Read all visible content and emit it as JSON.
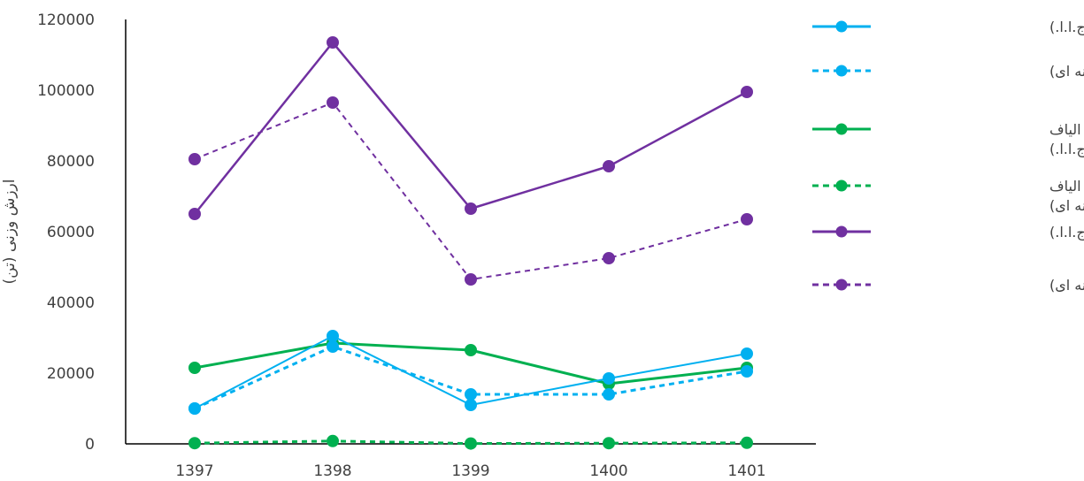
{
  "chart_data": {
    "type": "line",
    "title": "",
    "xlabel": "",
    "ylabel": "ارزش وزنی (تن)",
    "categories": [
      "1397",
      "1398",
      "1399",
      "1400",
      "1401"
    ],
    "ylim": [
      0,
      120000
    ],
    "yticks": [
      "0",
      "20000",
      "40000",
      "60000",
      "80000",
      "100000",
      "120000"
    ],
    "grid": false,
    "legend_position": "right",
    "series": [
      {
        "name": "نخ پنبه (گمرک ج.ا.ا.)",
        "legend_lines": [
          "نخ پنبه (گمرک ج.ا.ا.)"
        ],
        "color": "#00B0F0",
        "dashed": false,
        "width": 2,
        "values": [
          10000,
          30500,
          11000,
          18500,
          25500
        ]
      },
      {
        "name": "نخ پنبه (آینه ای)",
        "legend_lines": [
          "نخ پنبه (آینه ای)"
        ],
        "color": "#00B0F0",
        "dashed": true,
        "width": 3,
        "values": [
          10000,
          27500,
          14000,
          14000,
          20500
        ]
      },
      {
        "name": "نخ تهیه شده از سایر الیاف طبیعی (گمرک ج.ا.ا.)",
        "legend_lines": [
          "نخ تهیه شده از سایر الیاف",
          "طبیعی (گمرک ج.ا.ا.)"
        ],
        "color": "#00B050",
        "dashed": false,
        "width": 3,
        "values": [
          21500,
          28500,
          26500,
          17000,
          21500
        ]
      },
      {
        "name": "نخ تهیه شده از سایر الیاف طبیعی (آینه ای)",
        "legend_lines": [
          "نخ تهیه شده از سایر الیاف",
          "طبیعی (آینه ای)"
        ],
        "color": "#00B050",
        "dashed": true,
        "width": 3,
        "values": [
          200,
          800,
          100,
          200,
          300
        ]
      },
      {
        "name": "نخ مصنوعی (گمرک ج.ا.ا.)",
        "legend_lines": [
          "نخ مصنوعی (گمرک ج.ا.ا.)"
        ],
        "color": "#7030A0",
        "dashed": false,
        "width": 2.5,
        "values": [
          65000,
          113500,
          66500,
          78500,
          99500
        ]
      },
      {
        "name": "نخ مصنوعی (آینه ای)",
        "legend_lines": [
          "نخ مصنوعی (آینه ای)"
        ],
        "color": "#7030A0",
        "dashed": true,
        "width": 2,
        "values": [
          80500,
          96500,
          46500,
          52500,
          63500
        ]
      }
    ]
  }
}
